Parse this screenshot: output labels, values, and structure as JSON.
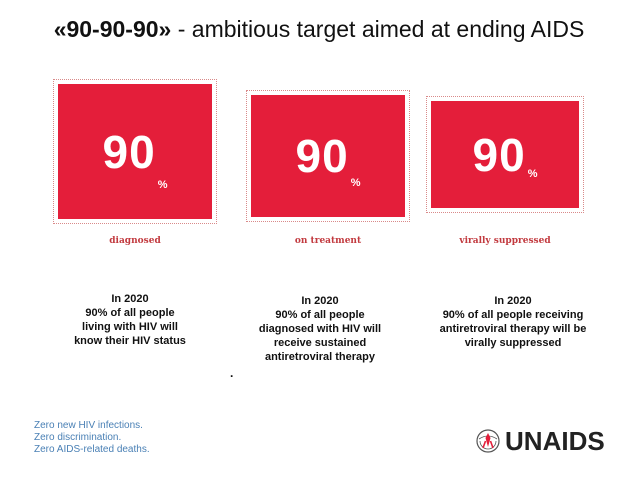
{
  "header": {
    "title_bold": "«90-90-90»",
    "title_rest": " - ambitious target aimed at ending AIDS"
  },
  "targets": [
    {
      "number": "90",
      "unit": "%",
      "caption": "diagnosed",
      "description": [
        "In 2020",
        "90% of all people",
        "living with HIV will",
        "know their HIV status"
      ]
    },
    {
      "number": "90",
      "unit": "%",
      "caption": "on treatment",
      "description": [
        "In 2020",
        "90% of all people",
        "diagnosed with HIV will",
        "receive sustained",
        "antiretroviral therapy"
      ]
    },
    {
      "number": "90",
      "unit": "%",
      "caption": "virally suppressed",
      "description": [
        "In 2020",
        "90% of all people receiving",
        "antiretroviral therapy will be",
        "virally suppressed"
      ]
    }
  ],
  "stray_mark": ".",
  "footer": {
    "tagline": [
      "Zero new HIV infections.",
      "Zero discrimination.",
      "Zero AIDS-related deaths."
    ],
    "logo_text_un": "UN",
    "logo_text_aids": "AIDS"
  },
  "colors": {
    "accent_red": "#e41e3a",
    "caption_red": "#c23a3f",
    "tagline_blue": "#4a80b5"
  }
}
